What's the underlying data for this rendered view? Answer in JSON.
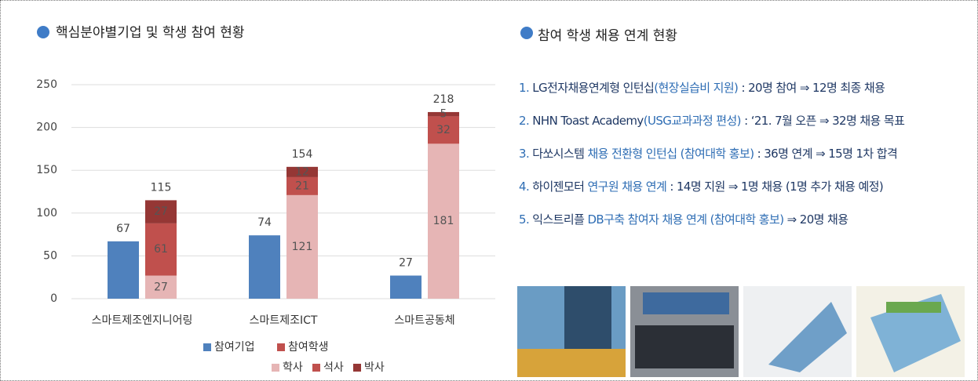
{
  "chart_data": {
    "type": "grouped-stacked-bar",
    "title": "핵심분야별기업 및 학생 참여 현황",
    "categories": [
      "스마트제조엔지니어링",
      "스마트제조ICT",
      "스마트공동체"
    ],
    "series": [
      {
        "name": "참여기업",
        "color": "#4f81bd",
        "values": [
          67,
          74,
          27
        ]
      }
    ],
    "student_group": {
      "name": "참여학생",
      "color": "#c0504d",
      "totals": [
        115,
        154,
        218
      ],
      "series": [
        {
          "name": "학사",
          "color": "#e6b5b5",
          "values": [
            27,
            121,
            181
          ]
        },
        {
          "name": "석사",
          "color": "#c0504d",
          "values": [
            61,
            21,
            32
          ]
        },
        {
          "name": "박사",
          "color": "#953735",
          "values": [
            27,
            12,
            5
          ]
        }
      ]
    },
    "ylim": [
      0,
      250
    ],
    "yticks": [
      0,
      50,
      100,
      150,
      200,
      250
    ],
    "grid": true
  },
  "right_panel": {
    "title": "참여 학생 채용 연계  현황",
    "items": [
      [
        {
          "text": "1. ",
          "color": "#2e6db4"
        },
        {
          "text": "LG전자채용연계형 인턴십",
          "color": "#1f3864"
        },
        {
          "text": "(현장실습비 지원)",
          "color": "#2e6db4"
        },
        {
          "text": " :  20명 참여 ⇒ 12명 최종 채용",
          "color": "#1f3864"
        }
      ],
      [
        {
          "text": "2. ",
          "color": "#2e6db4"
        },
        {
          "text": "NHN Toast Academy",
          "color": "#1f3864"
        },
        {
          "text": "(USG교과과정 편성)",
          "color": "#2e6db4"
        },
        {
          "text": " : ‘21. 7월 오픈 ⇒ 32명 채용 목표",
          "color": "#1f3864"
        }
      ],
      [
        {
          "text": "3. ",
          "color": "#2e6db4"
        },
        {
          "text": "다쏘시스템",
          "color": "#1f3864"
        },
        {
          "text": " 채용 전환형 인턴십 (참여대학 홍보)",
          "color": "#2e6db4"
        },
        {
          "text": " : 36명 연계 ⇒ 15명 1차 합격",
          "color": "#1f3864"
        }
      ],
      [
        {
          "text": "4. ",
          "color": "#2e6db4"
        },
        {
          "text": "하이젠모터",
          "color": "#1f3864"
        },
        {
          "text": " 연구원 채용 연계",
          "color": "#2e6db4"
        },
        {
          "text": " : 14명 지원  ⇒ 1명 채용 (1명 추가 채용 예정)",
          "color": "#1f3864"
        }
      ],
      [
        {
          "text": "5. ",
          "color": "#2e6db4"
        },
        {
          "text": "익스트리플",
          "color": "#1f3864"
        },
        {
          "text": " DB구축 참여자 채용 연계 (참여대학 홍보)",
          "color": "#2e6db4"
        },
        {
          "text": " ⇒ 20명 채용",
          "color": "#1f3864"
        }
      ]
    ]
  }
}
